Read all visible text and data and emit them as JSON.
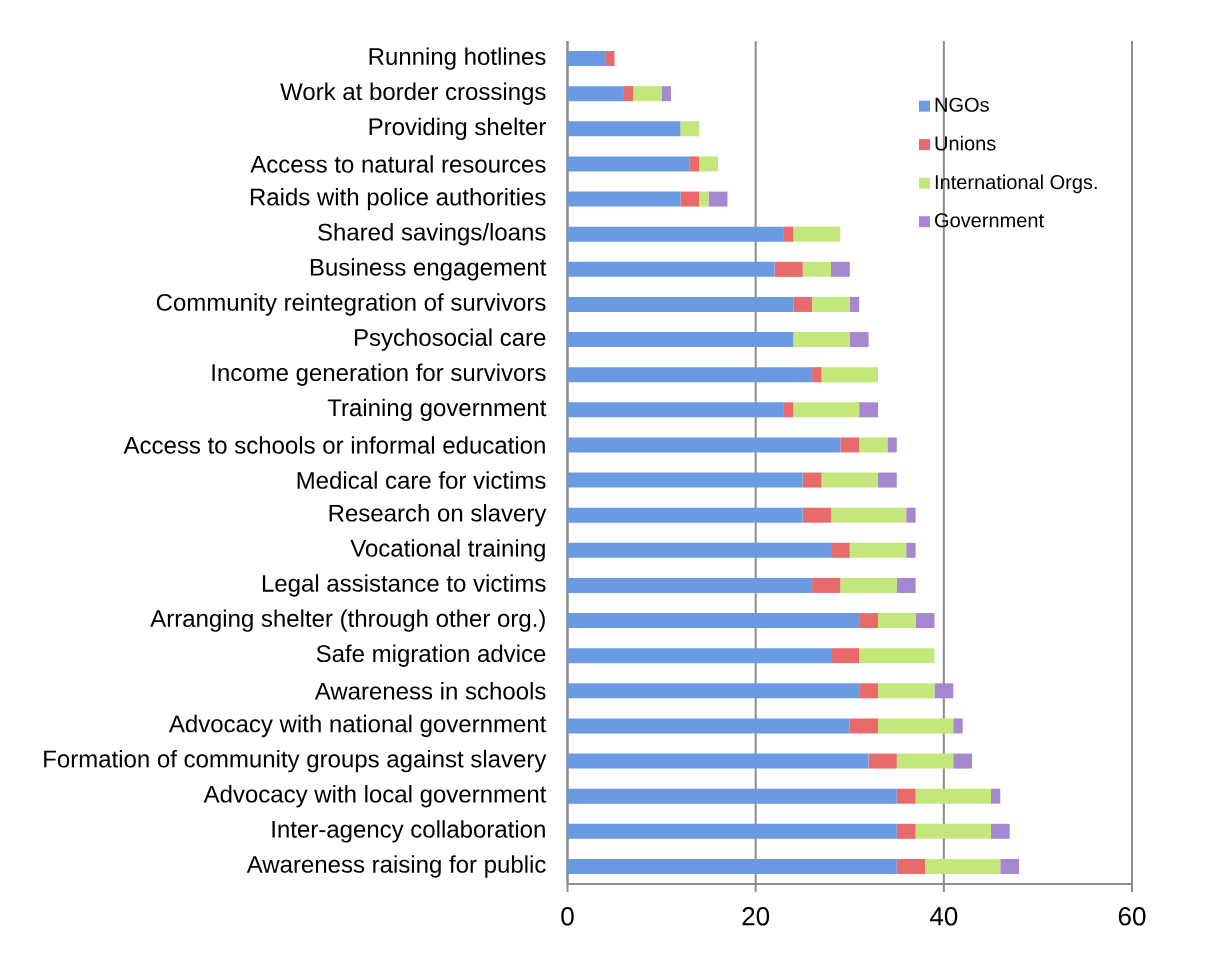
{
  "chart_data": {
    "type": "bar",
    "orientation": "horizontal",
    "stacked": true,
    "categories": [
      "Running hotlines",
      "Work at border crossings",
      "Providing shelter",
      "Access to natural resources",
      "Raids with police authorities",
      "Shared savings/loans",
      "Business engagement",
      "Community reintegration of survivors",
      "Psychosocial care",
      "Income generation for survivors",
      "Training government",
      "Access to schools or informal education",
      "Medical care for victims",
      "Research on slavery",
      "Vocational training",
      "Legal assistance to victims",
      "Arranging shelter (through other org.)",
      "Safe migration advice",
      "Awareness in schools",
      "Advocacy with national government",
      "Formation of community groups against slavery",
      "Advocacy with local government",
      "Inter-agency collaboration",
      "Awareness raising for public"
    ],
    "series": [
      {
        "name": "NGOs",
        "color": "#6a9ae2",
        "values": [
          4,
          6,
          12,
          13,
          12,
          23,
          22,
          24,
          24,
          26,
          23,
          29,
          25,
          25,
          28,
          26,
          31,
          28,
          31,
          30,
          32,
          35,
          35,
          35
        ]
      },
      {
        "name": "Unions",
        "color": "#e86a6a",
        "values": [
          1,
          1,
          0,
          1,
          2,
          1,
          3,
          2,
          0,
          1,
          1,
          2,
          2,
          3,
          2,
          3,
          2,
          3,
          2,
          3,
          3,
          2,
          2,
          3
        ]
      },
      {
        "name": "International Orgs.",
        "color": "#c3e77a",
        "values": [
          0,
          3,
          2,
          2,
          1,
          5,
          3,
          4,
          6,
          6,
          7,
          3,
          6,
          8,
          6,
          6,
          4,
          8,
          6,
          8,
          6,
          8,
          8,
          8
        ]
      },
      {
        "name": "Government",
        "color": "#a688d0",
        "values": [
          0,
          1,
          0,
          0,
          2,
          0,
          2,
          1,
          2,
          0,
          2,
          1,
          2,
          1,
          1,
          2,
          2,
          0,
          2,
          1,
          2,
          1,
          2,
          2
        ]
      }
    ],
    "xlim": [
      0,
      60
    ],
    "xticks": [
      0,
      20,
      40,
      60
    ],
    "grid": "x",
    "legend": "top right"
  }
}
